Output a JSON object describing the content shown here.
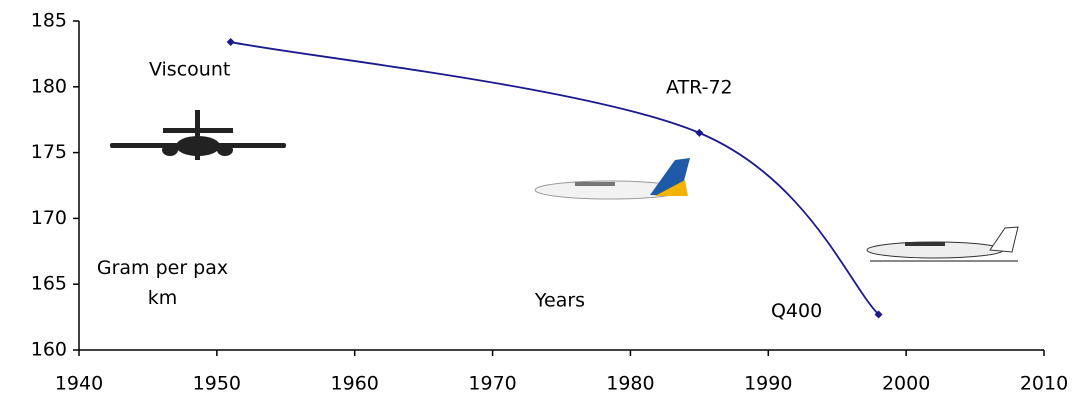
{
  "chart_data": {
    "type": "line",
    "xlabel": "Years",
    "ylabel": "Gram per pax km",
    "x": [
      1951,
      1985,
      1998
    ],
    "series": [
      {
        "name": "Gram per pax km",
        "color": "#1a1a8c",
        "values": [
          183.4,
          176.5,
          162.7
        ]
      }
    ],
    "point_labels": [
      "Viscount",
      "ATR-72",
      "Q400"
    ],
    "xlim": [
      1940,
      2010
    ],
    "xticks": [
      1940,
      1950,
      1960,
      1970,
      1980,
      1990,
      2000,
      2010
    ],
    "ylim": [
      160,
      185
    ],
    "yticks": [
      160,
      165,
      170,
      175,
      180,
      185
    ],
    "grid": false,
    "smooth": true
  }
}
